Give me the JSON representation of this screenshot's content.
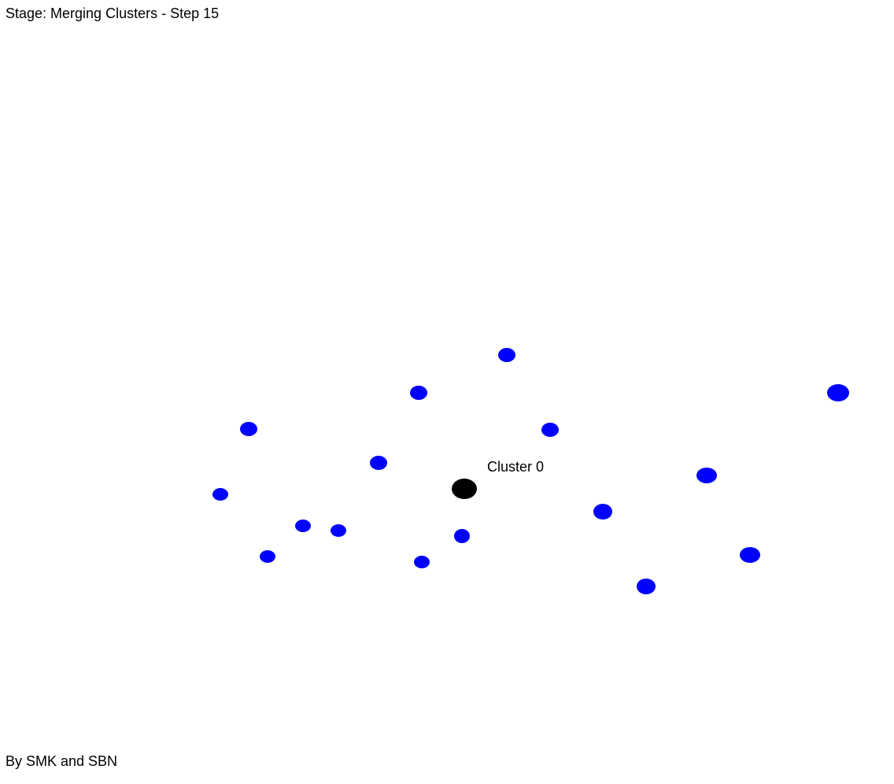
{
  "stage": {
    "label": "Stage: Merging Clusters - Step 15"
  },
  "credit": {
    "label": "By SMK and SBN"
  },
  "colors": {
    "point": "#0000ff",
    "center": "#000000",
    "background": "#ffffff"
  },
  "cluster_center": {
    "label": "Cluster 0"
  },
  "point_count": 18
}
